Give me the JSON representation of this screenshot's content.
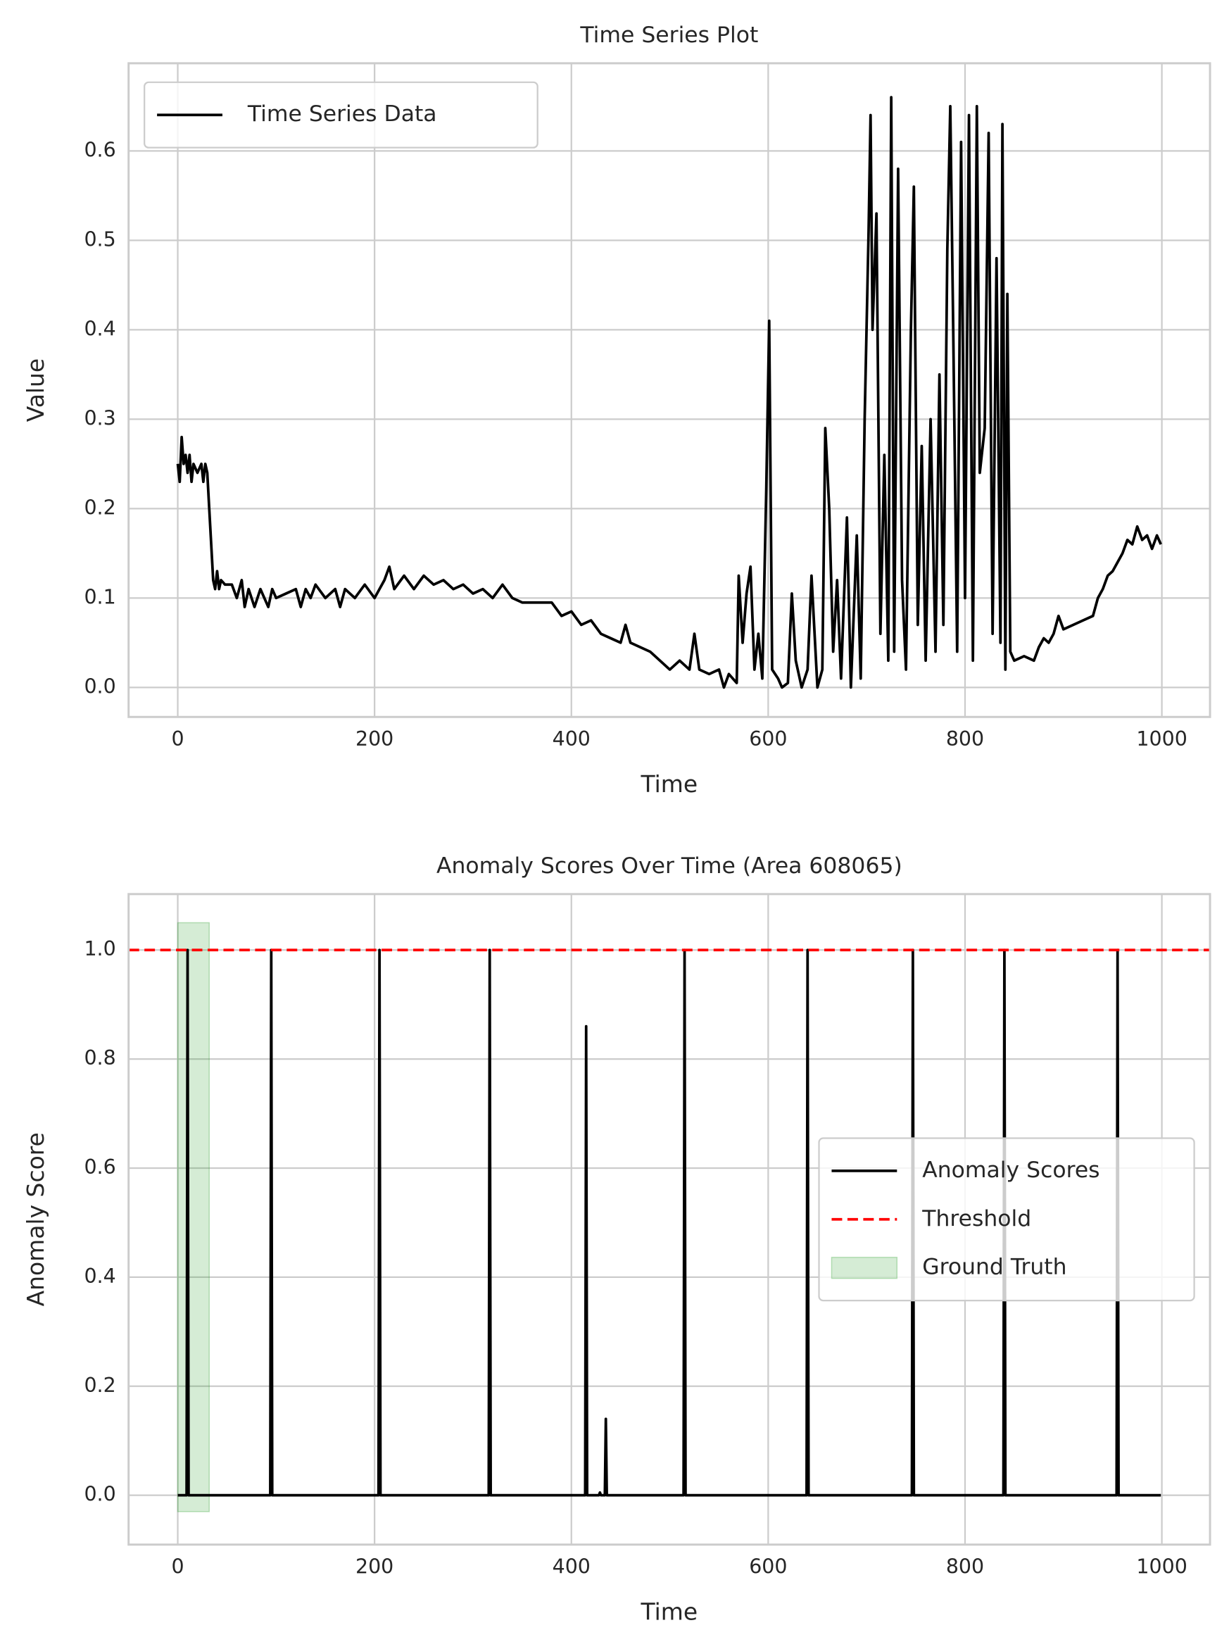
{
  "chart_data": [
    {
      "type": "line",
      "title": "Time Series Plot",
      "xlabel": "Time",
      "ylabel": "Value",
      "xlim": [
        -49.95,
        1048.95
      ],
      "ylim": [
        -0.033,
        0.698
      ],
      "xticks": [
        0,
        200,
        400,
        600,
        800,
        1000
      ],
      "yticks": [
        {
          "value": 0,
          "label": "0.0"
        },
        0.1,
        0.2,
        0.3,
        0.4,
        0.5,
        0.6
      ],
      "grid": true,
      "legend": "upper left",
      "series": [
        {
          "type": "line",
          "name": "Time Series Data",
          "color": "#000000",
          "x": [
            0,
            2,
            4,
            6,
            8,
            10,
            12,
            14,
            16,
            20,
            24,
            26,
            28,
            30,
            32,
            34,
            36,
            38,
            40,
            42,
            44,
            48,
            55,
            60,
            65,
            68,
            72,
            78,
            84,
            88,
            92,
            96,
            100,
            110,
            120,
            125,
            130,
            135,
            140,
            150,
            160,
            165,
            170,
            180,
            190,
            200,
            205,
            210,
            215,
            220,
            230,
            240,
            250,
            260,
            270,
            280,
            290,
            300,
            310,
            320,
            330,
            340,
            350,
            370,
            380,
            390,
            400,
            410,
            420,
            430,
            440,
            450,
            455,
            460,
            470,
            480,
            490,
            500,
            510,
            520,
            525,
            530,
            540,
            550,
            555,
            560,
            568,
            570,
            574,
            578,
            582,
            586,
            590,
            594,
            598,
            601,
            604,
            610,
            614,
            620,
            624,
            628,
            634,
            640,
            644,
            650,
            655,
            658,
            662,
            666,
            670,
            674,
            680,
            684,
            690,
            694,
            698,
            702,
            704,
            706,
            710,
            714,
            718,
            722,
            725,
            728,
            732,
            736,
            740,
            745,
            748,
            752,
            756,
            760,
            765,
            770,
            774,
            778,
            782,
            785,
            788,
            792,
            796,
            800,
            804,
            808,
            812,
            815,
            820,
            824,
            828,
            832,
            836,
            838,
            841,
            843,
            846,
            850,
            860,
            870,
            875,
            880,
            885,
            890,
            895,
            900,
            910,
            920,
            930,
            935,
            940,
            945,
            950,
            955,
            960,
            965,
            970,
            975,
            980,
            985,
            990,
            995,
            999
          ],
          "values": [
            0.25,
            0.23,
            0.28,
            0.25,
            0.26,
            0.24,
            0.26,
            0.23,
            0.25,
            0.24,
            0.25,
            0.23,
            0.25,
            0.24,
            0.2,
            0.16,
            0.12,
            0.11,
            0.13,
            0.11,
            0.12,
            0.115,
            0.115,
            0.1,
            0.12,
            0.09,
            0.11,
            0.09,
            0.11,
            0.1,
            0.09,
            0.11,
            0.1,
            0.105,
            0.11,
            0.09,
            0.11,
            0.1,
            0.115,
            0.1,
            0.11,
            0.09,
            0.11,
            0.1,
            0.115,
            0.1,
            0.11,
            0.12,
            0.135,
            0.11,
            0.125,
            0.11,
            0.125,
            0.115,
            0.12,
            0.11,
            0.115,
            0.105,
            0.11,
            0.1,
            0.115,
            0.1,
            0.095,
            0.095,
            0.095,
            0.08,
            0.085,
            0.07,
            0.075,
            0.06,
            0.055,
            0.05,
            0.07,
            0.05,
            0.045,
            0.04,
            0.03,
            0.02,
            0.03,
            0.02,
            0.06,
            0.02,
            0.015,
            0.02,
            0.0,
            0.015,
            0.005,
            0.125,
            0.05,
            0.105,
            0.135,
            0.02,
            0.06,
            0.01,
            0.22,
            0.41,
            0.02,
            0.01,
            0.0,
            0.005,
            0.105,
            0.03,
            0.0,
            0.02,
            0.125,
            0.0,
            0.02,
            0.29,
            0.2,
            0.04,
            0.12,
            0.01,
            0.19,
            0.0,
            0.17,
            0.01,
            0.3,
            0.51,
            0.64,
            0.4,
            0.53,
            0.06,
            0.26,
            0.03,
            0.66,
            0.04,
            0.58,
            0.12,
            0.02,
            0.4,
            0.56,
            0.07,
            0.27,
            0.03,
            0.3,
            0.04,
            0.35,
            0.07,
            0.49,
            0.65,
            0.4,
            0.04,
            0.61,
            0.1,
            0.64,
            0.03,
            0.65,
            0.24,
            0.29,
            0.62,
            0.06,
            0.48,
            0.05,
            0.63,
            0.02,
            0.44,
            0.04,
            0.03,
            0.035,
            0.03,
            0.045,
            0.055,
            0.05,
            0.06,
            0.08,
            0.065,
            0.07,
            0.075,
            0.08,
            0.1,
            0.11,
            0.125,
            0.13,
            0.14,
            0.15,
            0.165,
            0.16,
            0.18,
            0.165,
            0.17,
            0.155,
            0.17,
            0.16
          ]
        }
      ]
    },
    {
      "type": "line",
      "title": "Anomaly Scores Over Time (Area 608065)",
      "xlabel": "Time",
      "ylabel": "Anomaly Score",
      "xlim": [
        -49.95,
        1048.95
      ],
      "ylim": [
        -0.0905,
        1.1025
      ],
      "xticks": [
        0,
        200,
        400,
        600,
        800,
        1000
      ],
      "yticks": [
        {
          "value": 0,
          "label": "0.0"
        },
        0.2,
        0.4,
        0.6,
        0.8,
        {
          "value": 1,
          "label": "1.0"
        }
      ],
      "grid": true,
      "legend": "center right",
      "series": [
        {
          "type": "line",
          "name": "Anomaly Scores",
          "color": "#000000",
          "x": [
            0,
            9,
            10,
            11,
            94,
            95,
            96,
            204,
            205,
            206,
            316,
            317,
            318,
            414,
            415,
            416,
            428,
            429,
            430,
            434,
            435,
            436,
            514,
            515,
            516,
            639,
            640,
            641,
            746,
            747,
            748,
            839,
            840,
            841,
            954,
            955,
            956,
            999
          ],
          "values": [
            0,
            0,
            1,
            0,
            0,
            1,
            0,
            0,
            1,
            0,
            0,
            1,
            0,
            0,
            0.86,
            0,
            0,
            0.005,
            0,
            0,
            0.14,
            0,
            0,
            1,
            0,
            0,
            1,
            0,
            0,
            1,
            0,
            0,
            1,
            0,
            0,
            1,
            0,
            0
          ]
        },
        {
          "type": "hline",
          "name": "Threshold",
          "color": "#ff0000",
          "value": 1
        },
        {
          "type": "span",
          "name": "Ground Truth",
          "color": "#2ca02c",
          "x": [
            0,
            32
          ],
          "values": [
            -0.03,
            1.05
          ]
        }
      ]
    }
  ]
}
